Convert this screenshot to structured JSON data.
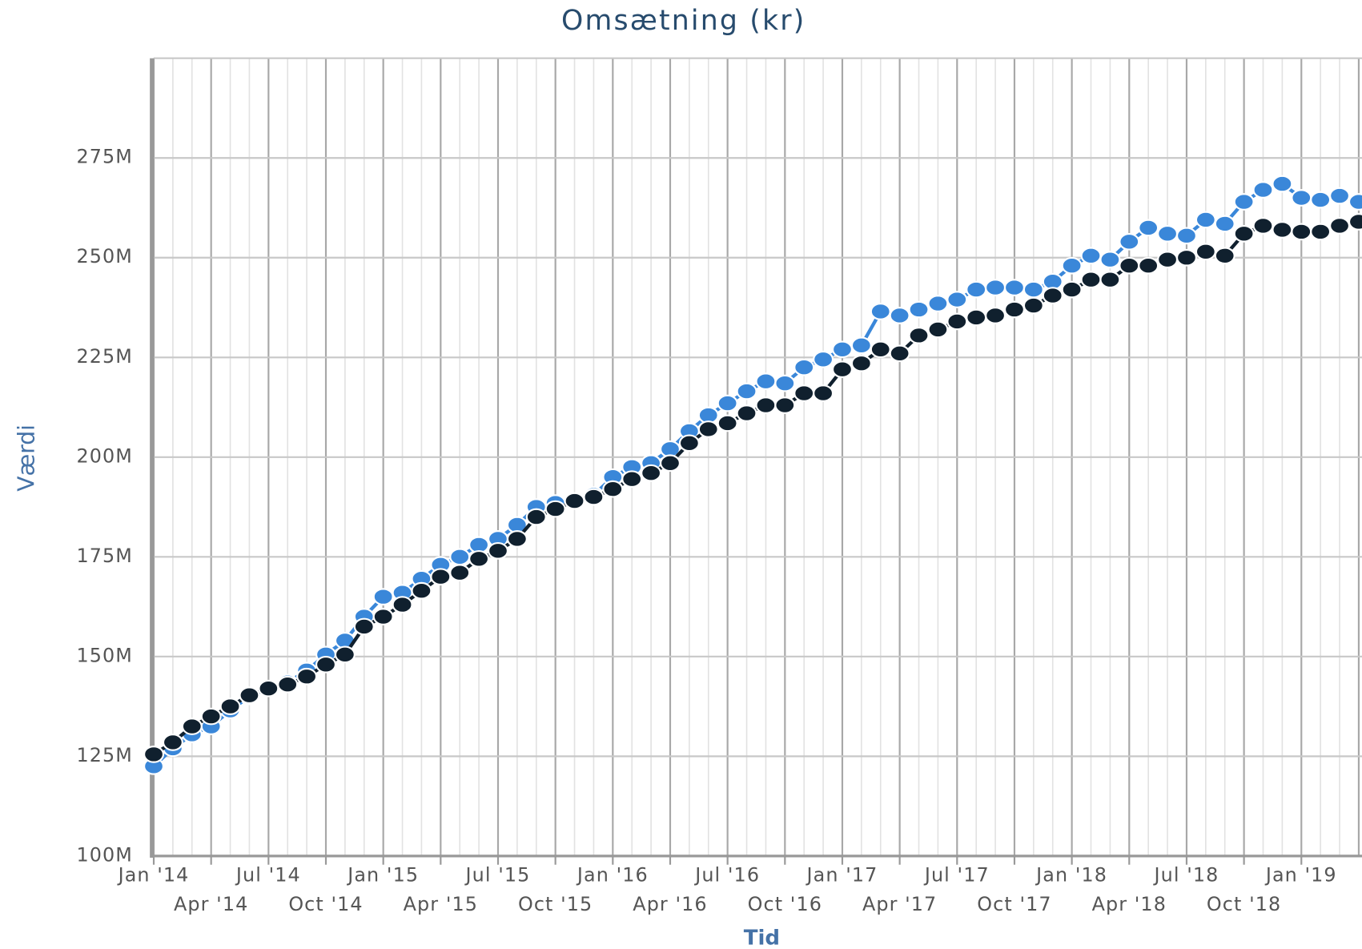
{
  "chart_data": {
    "type": "line",
    "title": "Omsætning (kr)",
    "y_label": "Værdi",
    "x_label": "Tid",
    "categories": [
      "Jan '14",
      null,
      null,
      "Apr '14",
      null,
      null,
      "Jul '14",
      null,
      null,
      "Oct '14",
      null,
      null,
      "Jan '15",
      null,
      null,
      "Apr '15",
      null,
      null,
      "Jul '15",
      null,
      null,
      "Oct '15",
      null,
      null,
      "Jan '16",
      null,
      null,
      "Apr '16",
      null,
      null,
      "Jul '16",
      null,
      null,
      "Oct '16",
      null,
      null,
      "Jan '17",
      null,
      null,
      "Apr '17",
      null,
      null,
      "Jul '17",
      null,
      null,
      "Oct '17",
      null,
      null,
      "Jan '18",
      null,
      null,
      "Apr '18",
      null,
      null,
      "Jul '18",
      null,
      null,
      "Oct '18",
      null,
      null,
      "Jan '19",
      null,
      null,
      null
    ],
    "series": [
      {
        "color": "#3a87d9",
        "values": [
          122500000,
          127000000,
          130500000,
          132500000,
          136500000,
          140000000,
          142000000,
          143500000,
          146500000,
          150500000,
          154000000,
          160000000,
          165000000,
          166000000,
          169500000,
          173000000,
          175000000,
          178000000,
          179500000,
          183000000,
          187500000,
          188500000,
          189000000,
          190500000,
          195000000,
          197500000,
          198500000,
          202000000,
          206500000,
          210500000,
          213500000,
          216500000,
          219000000,
          218500000,
          222500000,
          224500000,
          227000000,
          228000000,
          236500000,
          235500000,
          237000000,
          238500000,
          239500000,
          242000000,
          242500000,
          242500000,
          242000000,
          244000000,
          248000000,
          250500000,
          249500000,
          254000000,
          257500000,
          256000000,
          255500000,
          259500000,
          258500000,
          264000000,
          267000000,
          268500000,
          265000000,
          264500000,
          265500000,
          264000000
        ]
      },
      {
        "color": "#10202e",
        "values": [
          125500000,
          128500000,
          132500000,
          135000000,
          137500000,
          140300000,
          142000000,
          143000000,
          145000000,
          148000000,
          150500000,
          157500000,
          160000000,
          163000000,
          166500000,
          170000000,
          171000000,
          174500000,
          176500000,
          179500000,
          185000000,
          187000000,
          189000000,
          190000000,
          192000000,
          194500000,
          196000000,
          198500000,
          203500000,
          207000000,
          208500000,
          211000000,
          213000000,
          213000000,
          216000000,
          216000000,
          222000000,
          223500000,
          227000000,
          226000000,
          230500000,
          232000000,
          234000000,
          235000000,
          235500000,
          237000000,
          238000000,
          240500000,
          242000000,
          244500000,
          244500000,
          248000000,
          248000000,
          249500000,
          250000000,
          251500000,
          250500000,
          256000000,
          258000000,
          257000000,
          256500000,
          256500000,
          258000000,
          259000000
        ]
      }
    ],
    "ylim": [
      100000000,
      300000000
    ],
    "yticks": [
      {
        "value": 100000000,
        "label": "100M"
      },
      {
        "value": 125000000,
        "label": "125M"
      },
      {
        "value": 150000000,
        "label": "150M"
      },
      {
        "value": 175000000,
        "label": "175M"
      },
      {
        "value": 200000000,
        "label": "200M"
      },
      {
        "value": 225000000,
        "label": "225M"
      },
      {
        "value": 250000000,
        "label": "250M"
      },
      {
        "value": 275000000,
        "label": "275M"
      }
    ],
    "grid": true
  }
}
